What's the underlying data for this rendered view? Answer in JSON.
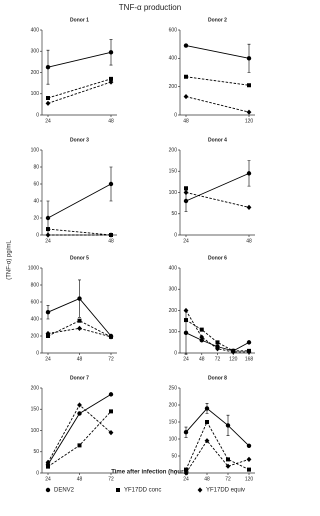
{
  "figure": {
    "title": "TNF-α production",
    "y_label": "(TNF-α) pg/mL",
    "x_label": "Time after infection (hours)"
  },
  "chart_data": [
    {
      "type": "line",
      "title": "Donor 1",
      "categories": [
        "24",
        "48"
      ],
      "ylim": [
        0,
        400
      ],
      "yticks": [
        0,
        100,
        200,
        300,
        400
      ],
      "series": [
        {
          "name": "DENV2",
          "color": "#000000",
          "marker": "circle",
          "style": "solid",
          "values": [
            225,
            295
          ],
          "errors": [
            80,
            60
          ]
        },
        {
          "name": "YF17DD conc",
          "color": "#000000",
          "marker": "square",
          "style": "dashed",
          "values": [
            80,
            170
          ]
        },
        {
          "name": "YF17DD equiv",
          "color": "#000000",
          "marker": "diamond",
          "style": "dashed",
          "values": [
            55,
            155
          ]
        }
      ]
    },
    {
      "type": "line",
      "title": "Donor 2",
      "categories": [
        "48",
        "120"
      ],
      "ylim": [
        0,
        600
      ],
      "yticks": [
        0,
        200,
        400,
        600
      ],
      "series": [
        {
          "name": "DENV2",
          "color": "#000000",
          "marker": "circle",
          "style": "solid",
          "values": [
            490,
            400
          ],
          "errors": [
            null,
            100
          ]
        },
        {
          "name": "YF17DD conc",
          "color": "#000000",
          "marker": "square",
          "style": "dashed",
          "values": [
            270,
            210
          ]
        },
        {
          "name": "YF17DD equiv",
          "color": "#000000",
          "marker": "diamond",
          "style": "dashed",
          "values": [
            130,
            20
          ]
        }
      ]
    },
    {
      "type": "line",
      "title": "Donor 3",
      "categories": [
        "24",
        "48"
      ],
      "ylim": [
        0,
        100
      ],
      "yticks": [
        0,
        20,
        40,
        60,
        80,
        100
      ],
      "series": [
        {
          "name": "DENV2",
          "color": "#000000",
          "marker": "circle",
          "style": "solid",
          "values": [
            20,
            60
          ],
          "errors": [
            20,
            20
          ]
        },
        {
          "name": "YF17DD conc",
          "color": "#000000",
          "marker": "square",
          "style": "dashed",
          "values": [
            7,
            0
          ]
        },
        {
          "name": "YF17DD equiv",
          "color": "#000000",
          "marker": "diamond",
          "style": "dashed",
          "values": [
            0,
            0
          ]
        }
      ]
    },
    {
      "type": "line",
      "title": "Donor 4",
      "categories": [
        "24",
        "48"
      ],
      "ylim": [
        0,
        200
      ],
      "yticks": [
        0,
        50,
        100,
        150,
        200
      ],
      "series": [
        {
          "name": "DENV2",
          "color": "#000000",
          "marker": "circle",
          "style": "solid",
          "values": [
            80,
            145
          ],
          "errors": [
            25,
            30
          ]
        },
        {
          "name": "YF17DD conc",
          "color": "#000000",
          "marker": "square",
          "style": "dashed",
          "values": [
            110,
            null
          ]
        },
        {
          "name": "YF17DD equiv",
          "color": "#000000",
          "marker": "diamond",
          "style": "dashed",
          "values": [
            100,
            65
          ]
        }
      ]
    },
    {
      "type": "line",
      "title": "Donor 5",
      "categories": [
        "24",
        "48",
        "72"
      ],
      "ylim": [
        0,
        1000
      ],
      "yticks": [
        0,
        200,
        400,
        600,
        800,
        1000
      ],
      "series": [
        {
          "name": "DENV2",
          "color": "#000000",
          "marker": "circle",
          "style": "solid",
          "values": [
            480,
            640,
            200
          ],
          "errors": [
            80,
            220,
            null
          ]
        },
        {
          "name": "YF17DD conc",
          "color": "#000000",
          "marker": "square",
          "style": "dashed",
          "values": [
            200,
            380,
            190
          ]
        },
        {
          "name": "YF17DD equiv",
          "color": "#000000",
          "marker": "diamond",
          "style": "dashed",
          "values": [
            230,
            290,
            190
          ]
        }
      ]
    },
    {
      "type": "line",
      "title": "Donor 6",
      "categories": [
        "24",
        "48",
        "72",
        "120",
        "168"
      ],
      "ylim": [
        0,
        400
      ],
      "yticks": [
        0,
        100,
        200,
        300,
        400
      ],
      "series": [
        {
          "name": "DENV2",
          "color": "#000000",
          "marker": "circle",
          "style": "solid",
          "values": [
            95,
            60,
            30,
            10,
            50
          ],
          "errors": [
            100,
            null,
            null,
            null,
            null
          ]
        },
        {
          "name": "YF17DD conc",
          "color": "#000000",
          "marker": "square",
          "style": "dashed",
          "values": [
            155,
            110,
            50,
            10,
            10
          ]
        },
        {
          "name": "YF17DD equiv",
          "color": "#000000",
          "marker": "diamond",
          "style": "dashed",
          "values": [
            200,
            75,
            20,
            5,
            5
          ]
        }
      ]
    },
    {
      "type": "line",
      "title": "Donor 7",
      "categories": [
        "24",
        "48",
        "72"
      ],
      "ylim": [
        0,
        200
      ],
      "yticks": [
        0,
        50,
        100,
        150,
        200
      ],
      "series": [
        {
          "name": "DENV2",
          "color": "#000000",
          "marker": "circle",
          "style": "solid",
          "values": [
            20,
            140,
            185
          ]
        },
        {
          "name": "YF17DD conc",
          "color": "#000000",
          "marker": "square",
          "style": "dashed",
          "values": [
            15,
            65,
            145
          ]
        },
        {
          "name": "YF17DD equiv",
          "color": "#000000",
          "marker": "diamond",
          "style": "dashed",
          "values": [
            25,
            160,
            95
          ]
        }
      ]
    },
    {
      "type": "line",
      "title": "Donor 8",
      "categories": [
        "24",
        "48",
        "72",
        "120"
      ],
      "ylim": [
        0,
        250
      ],
      "yticks": [
        0,
        50,
        100,
        150,
        200,
        250
      ],
      "series": [
        {
          "name": "DENV2",
          "color": "#000000",
          "marker": "circle",
          "style": "solid",
          "values": [
            120,
            190,
            140,
            80
          ],
          "errors": [
            15,
            15,
            30,
            null
          ]
        },
        {
          "name": "YF17DD conc",
          "color": "#000000",
          "marker": "square",
          "style": "dashed",
          "values": [
            10,
            150,
            40,
            10
          ]
        },
        {
          "name": "YF17DD equiv",
          "color": "#000000",
          "marker": "diamond",
          "style": "dashed",
          "values": [
            0,
            95,
            20,
            40
          ]
        }
      ]
    }
  ]
}
